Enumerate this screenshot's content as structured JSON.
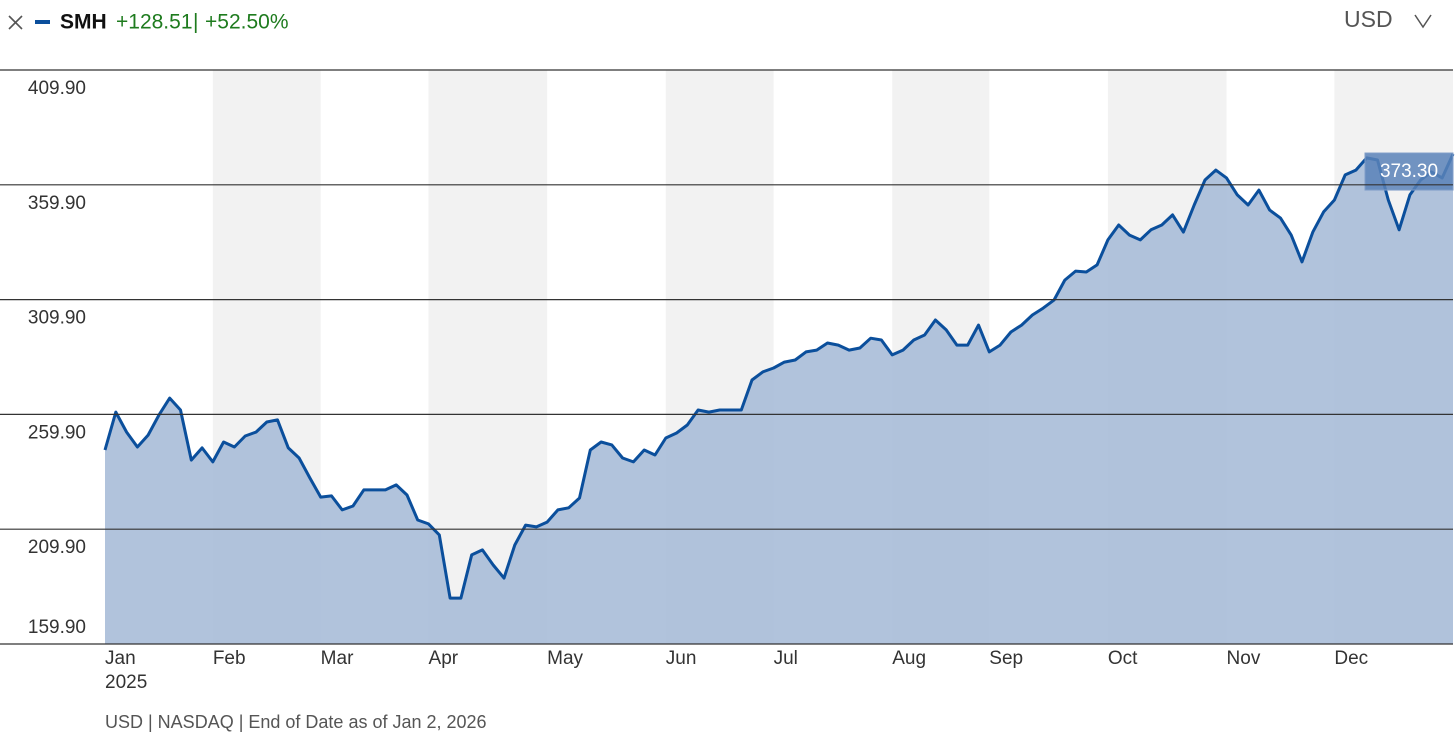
{
  "header": {
    "change": "+128.51",
    "separator": "|",
    "change_pct": "+52.50%",
    "currency": "USD"
  },
  "chart_data": {
    "type": "area",
    "categories": [
      "Jan",
      null,
      null,
      null,
      null,
      null,
      null,
      null,
      null,
      null,
      "Feb",
      null,
      null,
      null,
      null,
      null,
      null,
      null,
      null,
      null,
      "Mar",
      null,
      null,
      null,
      null,
      null,
      null,
      null,
      null,
      null,
      "Apr",
      null,
      null,
      null,
      null,
      null,
      null,
      null,
      null,
      null,
      null,
      "May",
      null,
      null,
      null,
      null,
      null,
      null,
      null,
      null,
      null,
      null,
      "Jun",
      null,
      null,
      null,
      null,
      null,
      null,
      null,
      null,
      null,
      "Jul",
      null,
      null,
      null,
      null,
      null,
      null,
      null,
      null,
      null,
      null,
      "Aug",
      null,
      null,
      null,
      null,
      null,
      null,
      null,
      null,
      "Sep",
      null,
      null,
      null,
      null,
      null,
      null,
      null,
      null,
      null,
      null,
      "Oct",
      null,
      null,
      null,
      null,
      null,
      null,
      null,
      null,
      null,
      null,
      "Nov",
      null,
      null,
      null,
      null,
      null,
      null,
      null,
      null,
      null,
      "Dec",
      null,
      null,
      null,
      null,
      null,
      null,
      null,
      null,
      null,
      null,
      null
    ],
    "x_year_label": "2025",
    "series": [
      {
        "name": "SMH",
        "color": "#0b4f9c",
        "fill": "#a9bcd8",
        "values": [
          244.4,
          260.9,
          252.2,
          245.7,
          250.9,
          259.6,
          267.0,
          261.8,
          240.0,
          245.3,
          239.2,
          247.9,
          245.7,
          250.5,
          252.2,
          256.6,
          257.5,
          245.3,
          240.9,
          232.2,
          223.9,
          224.4,
          218.3,
          220.0,
          227.0,
          227.0,
          227.0,
          229.2,
          224.8,
          213.9,
          212.2,
          207.4,
          179.9,
          179.9,
          198.7,
          200.9,
          194.3,
          188.6,
          203.0,
          211.7,
          210.9,
          213.0,
          218.3,
          219.2,
          223.5,
          244.4,
          247.9,
          246.6,
          240.9,
          239.2,
          244.4,
          242.2,
          249.6,
          251.8,
          255.3,
          261.8,
          260.9,
          261.8,
          261.8,
          261.8,
          274.9,
          278.4,
          280.1,
          282.7,
          283.6,
          287.1,
          287.9,
          291.0,
          290.1,
          287.9,
          288.8,
          293.1,
          292.3,
          285.8,
          287.9,
          292.3,
          294.5,
          301.0,
          296.7,
          290.1,
          290.1,
          298.8,
          287.1,
          290.1,
          295.8,
          298.8,
          303.2,
          306.2,
          309.7,
          318.4,
          322.3,
          321.9,
          325.0,
          335.9,
          342.4,
          338.0,
          335.9,
          340.3,
          342.4,
          346.8,
          339.3,
          351.1,
          362.0,
          366.3,
          362.9,
          355.5,
          351.1,
          357.6,
          348.9,
          345.4,
          338.0,
          326.3,
          339.3,
          348.1,
          353.3,
          364.2,
          366.3,
          371.6,
          370.7,
          353.3,
          340.3,
          355.5,
          362.0,
          365.5,
          362.9,
          373.3
        ],
        "value_labels": [
          null,
          null,
          null,
          null,
          null,
          null,
          null,
          null,
          null,
          null,
          null,
          null,
          null,
          null,
          null,
          null,
          null,
          null,
          null,
          null,
          null,
          null,
          null,
          null,
          null,
          null,
          null,
          null,
          null,
          null,
          null,
          null,
          null,
          null,
          null,
          null,
          null,
          null,
          null,
          null,
          null,
          null,
          null,
          null,
          null,
          null,
          null,
          null,
          null,
          null,
          null,
          null,
          null,
          null,
          null,
          null,
          null,
          null,
          null,
          null,
          null,
          null,
          null,
          null,
          null,
          null,
          null,
          null,
          null,
          null,
          null,
          null,
          null,
          null,
          null,
          null,
          null,
          null,
          null,
          null,
          null,
          null,
          null,
          null,
          null,
          null,
          null,
          null,
          null,
          null,
          null,
          null,
          null,
          null,
          null,
          null,
          null,
          null,
          null,
          null,
          null,
          null,
          null,
          null,
          null,
          null,
          null,
          null,
          null,
          null,
          null,
          null,
          null,
          null,
          null,
          null,
          null,
          null,
          null,
          null,
          null,
          null,
          null,
          null,
          null,
          "373.30"
        ]
      }
    ],
    "ylim": [
      159.9,
      409.9
    ],
    "yticks": [
      {
        "value": 159.9,
        "label": "159.90"
      },
      {
        "value": 209.9,
        "label": "209.90"
      },
      {
        "value": 259.9,
        "label": "259.90"
      },
      {
        "value": 309.9,
        "label": "309.90"
      },
      {
        "value": 359.9,
        "label": "359.90"
      },
      {
        "value": 409.9,
        "label": "409.90"
      }
    ],
    "grid": true,
    "month_shading": "#f2f2f2",
    "footnote": "USD | NASDAQ | End of Date as of Jan 2, 2026"
  }
}
